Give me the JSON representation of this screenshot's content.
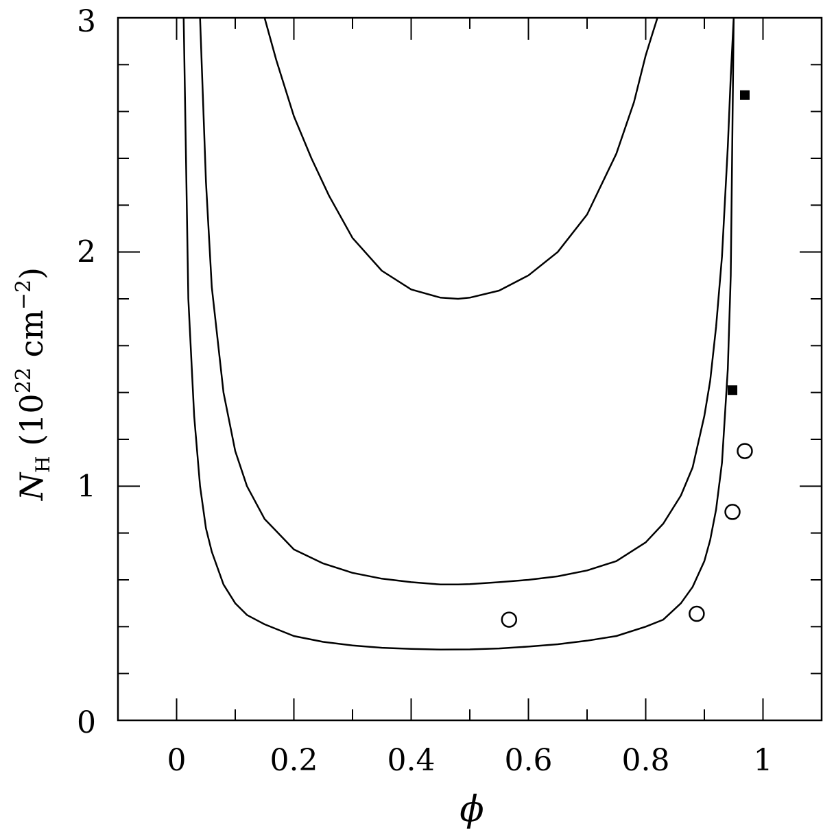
{
  "chart_data": {
    "type": "line",
    "title": "",
    "xlabel": "ϕ",
    "ylabel": {
      "symbol": "N",
      "subscript": "H",
      "unit_prefix": "(10",
      "unit_exp1": "22",
      "unit_mid": " cm",
      "unit_exp2": "−2",
      "unit_suffix": ")"
    },
    "xlim": [
      -0.1,
      1.1
    ],
    "ylim": [
      0,
      3
    ],
    "xticks": [
      0,
      0.2,
      0.4,
      0.6,
      0.8,
      1
    ],
    "xtick_labels": [
      "0",
      "0.2",
      "0.4",
      "0.6",
      "0.8",
      "1"
    ],
    "yticks": [
      0,
      1,
      2,
      3
    ],
    "ytick_labels": [
      "0",
      "1",
      "2",
      "3"
    ],
    "grid": false,
    "legend": "none",
    "series": [
      {
        "style": "curve",
        "x": [
          0.012,
          0.02,
          0.03,
          0.04,
          0.05,
          0.06,
          0.08,
          0.1,
          0.12,
          0.15,
          0.2,
          0.25,
          0.3,
          0.35,
          0.4,
          0.45,
          0.5,
          0.55,
          0.6,
          0.65,
          0.7,
          0.75,
          0.8,
          0.83,
          0.86,
          0.88,
          0.9,
          0.91,
          0.92,
          0.93,
          0.94,
          0.945,
          0.95
        ],
        "y": [
          3.0,
          1.8,
          1.3,
          1.0,
          0.82,
          0.72,
          0.58,
          0.5,
          0.45,
          0.41,
          0.36,
          0.335,
          0.32,
          0.31,
          0.305,
          0.302,
          0.303,
          0.307,
          0.315,
          0.325,
          0.34,
          0.36,
          0.4,
          0.43,
          0.5,
          0.57,
          0.68,
          0.77,
          0.9,
          1.1,
          1.5,
          1.9,
          3.0
        ]
      },
      {
        "style": "curve",
        "x": [
          0.04,
          0.05,
          0.06,
          0.08,
          0.1,
          0.12,
          0.15,
          0.2,
          0.25,
          0.3,
          0.35,
          0.4,
          0.45,
          0.48,
          0.5,
          0.55,
          0.6,
          0.65,
          0.7,
          0.75,
          0.8,
          0.83,
          0.86,
          0.88,
          0.9,
          0.91,
          0.92,
          0.93,
          0.94,
          0.945,
          0.95
        ],
        "y": [
          3.0,
          2.3,
          1.85,
          1.4,
          1.15,
          1.0,
          0.86,
          0.73,
          0.67,
          0.63,
          0.605,
          0.59,
          0.58,
          0.58,
          0.582,
          0.59,
          0.6,
          0.615,
          0.64,
          0.68,
          0.76,
          0.84,
          0.96,
          1.08,
          1.3,
          1.45,
          1.68,
          1.98,
          2.45,
          2.75,
          3.0
        ]
      },
      {
        "style": "curve",
        "x": [
          0.15,
          0.17,
          0.2,
          0.23,
          0.26,
          0.3,
          0.35,
          0.4,
          0.45,
          0.48,
          0.5,
          0.55,
          0.6,
          0.65,
          0.7,
          0.75,
          0.78,
          0.8,
          0.81,
          0.82
        ],
        "y": [
          3.0,
          2.82,
          2.58,
          2.4,
          2.24,
          2.06,
          1.92,
          1.84,
          1.805,
          1.8,
          1.805,
          1.835,
          1.9,
          2.0,
          2.16,
          2.42,
          2.64,
          2.84,
          2.92,
          3.0
        ]
      },
      {
        "style": "open-circle",
        "x": [
          0.567,
          0.887,
          0.948,
          0.969
        ],
        "y": [
          0.43,
          0.455,
          0.89,
          1.15
        ]
      },
      {
        "style": "filled-square",
        "x": [
          0.948,
          0.969
        ],
        "y": [
          1.41,
          2.67
        ]
      }
    ]
  }
}
